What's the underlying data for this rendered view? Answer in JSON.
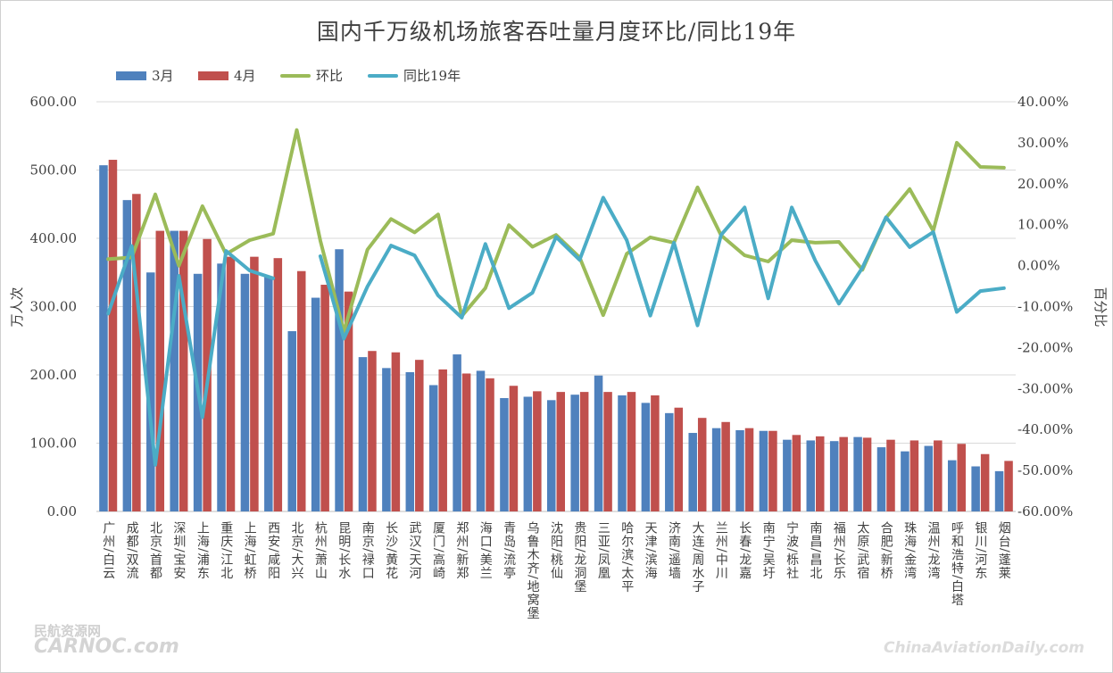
{
  "chart_data": {
    "type": "bar",
    "title": "国内千万级机场旅客吞吐量月度环比/同比19年",
    "ylabel": "万人次",
    "y2label": "百分比",
    "ylim": [
      0,
      600
    ],
    "y2lim": [
      -60,
      40
    ],
    "yticks": [
      "0.00",
      "100.00",
      "200.00",
      "300.00",
      "400.00",
      "500.00",
      "600.00"
    ],
    "y2ticks": [
      "-60.00%",
      "-50.00%",
      "-40.00%",
      "-30.00%",
      "-20.00%",
      "-10.00%",
      "0.00%",
      "10.00%",
      "20.00%",
      "30.00%",
      "40.00%"
    ],
    "grid": true,
    "legend_position": "top-left",
    "categories": [
      "广州/白云",
      "成都/双流",
      "北京/首都",
      "深圳/宝安",
      "上海/浦东",
      "重庆/江北",
      "上海/虹桥",
      "西安/咸阳",
      "北京/大兴",
      "杭州/萧山",
      "昆明/长水",
      "南京/禄口",
      "长沙/黄花",
      "武汉/天河",
      "厦门/高崎",
      "郑州/新郑",
      "海口/美兰",
      "青岛/流亭",
      "乌鲁木齐/地窝堡",
      "沈阳/桃仙",
      "贵阳/龙洞堡",
      "三亚/凤凰",
      "哈尔滨/太平",
      "天津/滨海",
      "济南/遥墙",
      "大连/周水子",
      "兰州/中川",
      "长春/龙嘉",
      "南宁/吴圩",
      "宁波/栎社",
      "南昌/昌北",
      "福州/长乐",
      "太原/武宿",
      "合肥/新桥",
      "珠海/金湾",
      "温州/龙湾",
      "呼和浩特/白塔",
      "银川/河东",
      "烟台/蓬莱"
    ],
    "series": [
      {
        "name": "3月",
        "kind": "bar",
        "axis": "left",
        "color": "#4f81bd",
        "values": [
          507,
          456,
          350,
          411,
          348,
          363,
          348,
          344,
          264,
          313,
          384,
          226,
          210,
          204,
          185,
          230,
          206,
          166,
          168,
          163,
          171,
          199,
          170,
          159,
          144,
          115,
          122,
          119,
          118,
          105,
          104,
          103,
          109,
          94,
          88,
          96,
          75,
          66,
          59
        ]
      },
      {
        "name": "4月",
        "kind": "bar",
        "axis": "left",
        "color": "#c0504d",
        "values": [
          515,
          465,
          411,
          411,
          399,
          373,
          373,
          371,
          352,
          332,
          322,
          235,
          233,
          222,
          208,
          202,
          195,
          184,
          176,
          175,
          175,
          175,
          175,
          170,
          152,
          137,
          131,
          122,
          118,
          112,
          110,
          109,
          108,
          105,
          104,
          104,
          99,
          84,
          74
        ]
      },
      {
        "name": "环比",
        "kind": "line",
        "axis": "right",
        "color": "#9bbb59",
        "values": [
          1.6,
          2.0,
          17.4,
          0.0,
          14.5,
          2.8,
          6.2,
          7.8,
          33.1,
          6.1,
          -16.1,
          3.9,
          11.4,
          8.1,
          12.5,
          -12.3,
          -5.5,
          9.9,
          4.6,
          7.5,
          2.0,
          -12.1,
          2.9,
          6.9,
          5.6,
          19.1,
          7.4,
          2.5,
          1.0,
          6.2,
          5.6,
          5.8,
          -1.0,
          11.7,
          18.7,
          8.5,
          30.0,
          24.1,
          23.9
        ]
      },
      {
        "name": "同比19年",
        "kind": "line",
        "axis": "right",
        "color": "#4bacc6",
        "values": [
          -11.7,
          4.8,
          -48.6,
          -2.5,
          -37.0,
          3.6,
          -1.2,
          -3.1,
          null,
          2.3,
          -17.8,
          -5.1,
          4.9,
          2.5,
          -7.3,
          -12.7,
          5.3,
          -10.4,
          -6.6,
          7.0,
          1.4,
          16.6,
          6.2,
          -12.2,
          5.6,
          -14.6,
          7.5,
          14.2,
          -8.0,
          14.2,
          1.2,
          -9.3,
          -0.5,
          11.8,
          4.5,
          8.2,
          -11.3,
          -6.2,
          -5.5
        ]
      }
    ]
  },
  "watermarks": {
    "left_cn": "民航资源网",
    "left_en": "CARNOC.com",
    "right": "ChinaAviationDaily.com"
  }
}
